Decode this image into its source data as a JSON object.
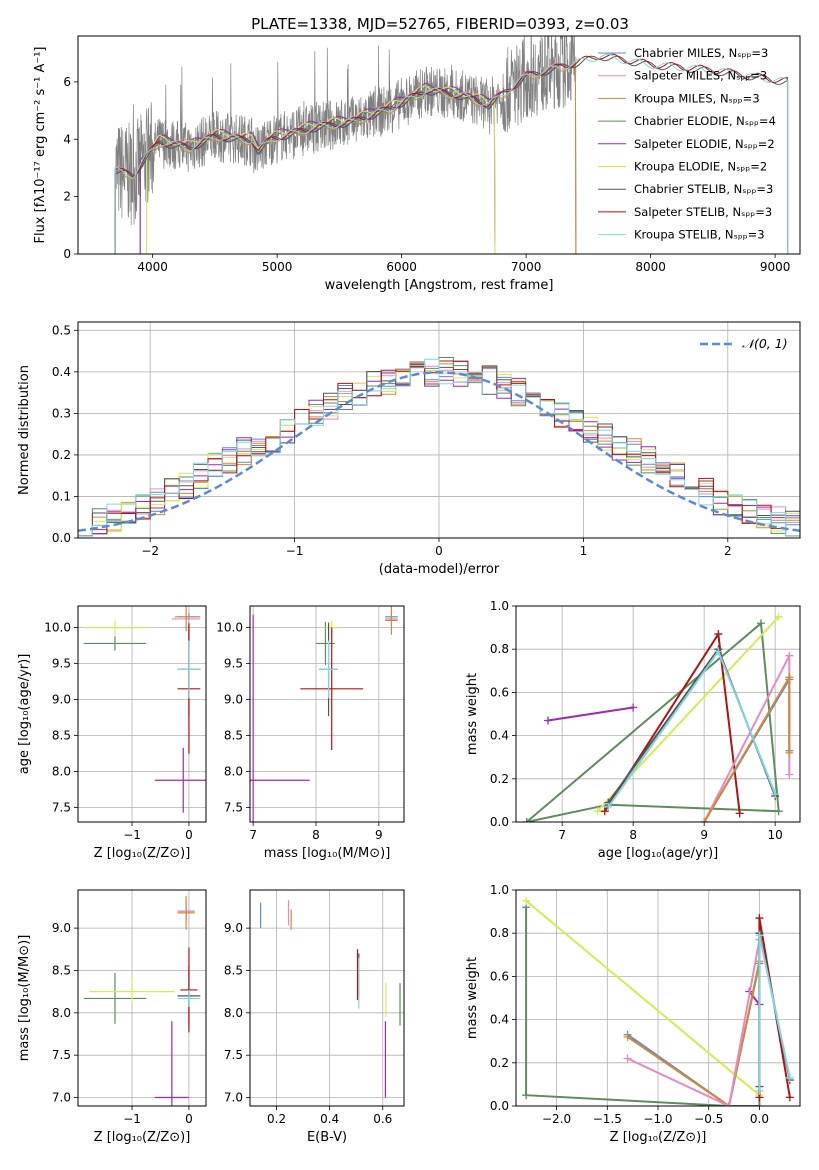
{
  "figure_title": "PLATE=1338, MJD=52765, FIBERID=0393, z=0.03",
  "colors": {
    "Chabrier MILES": "#5b8bd6",
    "Salpeter MILES": "#e78ac3",
    "Kroupa MILES": "#d4883a",
    "Chabrier ELODIE": "#5e8c5e",
    "Salpeter ELODIE": "#9c2ab5",
    "Kroupa ELODIE": "#d6ea54",
    "Chabrier STELIB": "#555555",
    "Salpeter STELIB": "#b01313",
    "Kroupa STELIB": "#7fd6e0",
    "data": "#808080",
    "grid": "#b0b0b0",
    "normal_curve": "#5b8bd6"
  },
  "chart_data": [
    {
      "id": "spectrum",
      "type": "line",
      "title": "PLATE=1338, MJD=52765, FIBERID=0393, z=0.03",
      "xlabel": "wavelength [Angstrom, rest frame]",
      "ylabel": "Flux [fλ10⁻¹⁷ erg cm⁻² s⁻¹ A⁻¹]",
      "xlim": [
        3400,
        9200
      ],
      "ylim": [
        0,
        7.6
      ],
      "xticks": [
        "4000",
        "5000",
        "6000",
        "7000",
        "8000",
        "9000"
      ],
      "yticks": [
        "0",
        "2",
        "4",
        "6"
      ],
      "grid": false,
      "legend_position": "top-right",
      "data_series": {
        "x_range": [
          3700,
          7400
        ],
        "name": "data"
      },
      "model_series": [
        {
          "label": "Chabrier MILES, Nₛₚₚ=3",
          "color_key": "Chabrier MILES",
          "x_range": [
            3700,
            7400
          ],
          "offset": 0.0
        },
        {
          "label": "Salpeter MILES, Nₛₚₚ=3",
          "color_key": "Salpeter MILES",
          "x_range": [
            3700,
            7400
          ],
          "offset": 0.05
        },
        {
          "label": "Kroupa MILES, Nₛₚₚ=3",
          "color_key": "Kroupa MILES",
          "x_range": [
            3700,
            7400
          ],
          "offset": -0.05
        },
        {
          "label": "Chabrier ELODIE, Nₛₚₚ=4",
          "color_key": "Chabrier ELODIE",
          "x_range": [
            3900,
            6750
          ],
          "offset": 0.08
        },
        {
          "label": "Salpeter ELODIE, Nₛₚₚ=2",
          "color_key": "Salpeter ELODIE",
          "x_range": [
            3900,
            6750
          ],
          "offset": 0.15
        },
        {
          "label": "Kroupa ELODIE, Nₛₚₚ=2",
          "color_key": "Kroupa ELODIE",
          "x_range": [
            3950,
            6750
          ],
          "offset": 0.12
        },
        {
          "label": "Chabrier STELIB, Nₛₚₚ=3",
          "color_key": "Chabrier STELIB",
          "x_range": [
            3700,
            9100
          ],
          "offset": -0.02
        },
        {
          "label": "Salpeter STELIB, Nₛₚₚ=3",
          "color_key": "Salpeter STELIB",
          "x_range": [
            3700,
            9100
          ],
          "offset": 0.02
        },
        {
          "label": "Kroupa STELIB, Nₛₚₚ=3",
          "color_key": "Kroupa STELIB",
          "x_range": [
            3700,
            9100
          ],
          "offset": 0.0
        }
      ],
      "continuum_points": [
        [
          3700,
          2.9
        ],
        [
          3850,
          2.75
        ],
        [
          3950,
          3.4
        ],
        [
          4050,
          3.9
        ],
        [
          4300,
          3.7
        ],
        [
          4500,
          4.1
        ],
        [
          4800,
          3.95
        ],
        [
          4850,
          3.6
        ],
        [
          4950,
          4.0
        ],
        [
          5300,
          4.4
        ],
        [
          5600,
          4.6
        ],
        [
          5900,
          5.05
        ],
        [
          6200,
          5.7
        ],
        [
          6500,
          5.5
        ],
        [
          6700,
          5.2
        ],
        [
          7000,
          6.2
        ],
        [
          7350,
          6.6
        ],
        [
          7600,
          6.9
        ],
        [
          8000,
          6.6
        ],
        [
          8500,
          6.4
        ],
        [
          9100,
          6.0
        ]
      ]
    },
    {
      "id": "residuals",
      "type": "bar",
      "xlabel": "(data-model)/error",
      "ylabel": "Normed distribution",
      "xlim": [
        -2.5,
        2.5
      ],
      "ylim": [
        0,
        0.52
      ],
      "xticks": [
        "−2",
        "−1",
        "0",
        "1",
        "2"
      ],
      "yticks": [
        "0.0",
        "0.1",
        "0.2",
        "0.3",
        "0.4",
        "0.5"
      ],
      "grid": true,
      "legend_position": "top-right",
      "legend": "𝒩(0, 1)",
      "bin_width": 0.1,
      "base_values": [
        0.03,
        0.04,
        0.05,
        0.06,
        0.07,
        0.09,
        0.11,
        0.13,
        0.15,
        0.17,
        0.19,
        0.21,
        0.22,
        0.24,
        0.26,
        0.28,
        0.3,
        0.32,
        0.34,
        0.35,
        0.37,
        0.38,
        0.39,
        0.4,
        0.4,
        0.4,
        0.4,
        0.39,
        0.38,
        0.37,
        0.35,
        0.34,
        0.32,
        0.3,
        0.28,
        0.26,
        0.24,
        0.22,
        0.21,
        0.19,
        0.17,
        0.15,
        0.13,
        0.11,
        0.09,
        0.07,
        0.06,
        0.05,
        0.04,
        0.03
      ]
    },
    {
      "id": "age_vs_Z",
      "type": "scatter",
      "xlabel": "Z [log₁₀(Z/Z⊙)]",
      "ylabel": "age  [log₁₀(age/yr)]",
      "xlim": [
        -1.95,
        0.3
      ],
      "ylim": [
        7.3,
        10.3
      ],
      "xticks": [
        "−1",
        "0"
      ],
      "yticks": [
        "7.5",
        "8.0",
        "8.5",
        "9.0",
        "9.5",
        "10.0"
      ],
      "grid": true,
      "points": [
        {
          "k": "Chabrier MILES",
          "x": 0.0,
          "y": 10.15,
          "ex": 0.2,
          "ey": 0.05
        },
        {
          "k": "Salpeter MILES",
          "x": -0.05,
          "y": 10.12,
          "ex": 0.25,
          "ey": 0.05
        },
        {
          "k": "Kroupa MILES",
          "x": -0.05,
          "y": 10.15,
          "ex": 0.2,
          "ey": 0.2
        },
        {
          "k": "Chabrier ELODIE",
          "x": -1.3,
          "y": 9.78,
          "ex": 0.55,
          "ey": 0.1
        },
        {
          "k": "Kroupa ELODIE",
          "x": -1.3,
          "y": 10.0,
          "ex": 0.55,
          "ey": 0.1
        },
        {
          "k": "Salpeter ELODIE",
          "x": -0.1,
          "y": 7.88,
          "ex": 0.5,
          "ey": 0.45
        },
        {
          "k": "Chabrier STELIB",
          "x": 0.0,
          "y": 9.42,
          "ex": 0.2,
          "ey": 0.65
        },
        {
          "k": "Salpeter STELIB",
          "x": 0.0,
          "y": 9.15,
          "ex": 0.2,
          "ey": 0.9
        },
        {
          "k": "Kroupa STELIB",
          "x": 0.0,
          "y": 9.42,
          "ex": 0.2,
          "ey": 0.4
        }
      ]
    },
    {
      "id": "age_vs_mass",
      "type": "scatter",
      "xlabel": "mass [log₁₀(M/M⊙)]",
      "ylabel": "",
      "xlim": [
        6.95,
        9.4
      ],
      "ylim": [
        7.3,
        10.3
      ],
      "xticks": [
        "7",
        "8",
        "9"
      ],
      "yticks": [
        "7.5",
        "8.0",
        "8.5",
        "9.0",
        "9.5",
        "10.0"
      ],
      "grid": true,
      "points": [
        {
          "k": "Chabrier MILES",
          "x": 9.2,
          "y": 10.15,
          "ex": 0.1,
          "ey": 0.05
        },
        {
          "k": "Salpeter MILES",
          "x": 9.2,
          "y": 10.12,
          "ex": 0.1,
          "ey": 0.05
        },
        {
          "k": "Kroupa MILES",
          "x": 9.2,
          "y": 10.1,
          "ex": 0.1,
          "ey": 0.2
        },
        {
          "k": "Chabrier ELODIE",
          "x": 8.15,
          "y": 9.78,
          "ex": 0.15,
          "ey": 0.3
        },
        {
          "k": "Kroupa ELODIE",
          "x": 8.25,
          "y": 10.0,
          "ex": 0.1,
          "ey": 0.1
        },
        {
          "k": "Salpeter ELODIE",
          "x": 7.0,
          "y": 7.88,
          "ex": 0.9,
          "ey": 2.3
        },
        {
          "k": "Chabrier STELIB",
          "x": 8.2,
          "y": 9.42,
          "ex": 0.15,
          "ey": 0.65
        },
        {
          "k": "Salpeter STELIB",
          "x": 8.25,
          "y": 9.15,
          "ex": 0.5,
          "ey": 0.85
        },
        {
          "k": "Kroupa STELIB",
          "x": 8.2,
          "y": 9.42,
          "ex": 0.15,
          "ey": 0.4
        }
      ]
    },
    {
      "id": "weight_vs_age",
      "type": "line",
      "xlabel": "age  [log₁₀(age/yr)]",
      "ylabel": "mass weight",
      "xlim": [
        6.35,
        10.35
      ],
      "ylim": [
        0,
        1
      ],
      "xticks": [
        "7",
        "8",
        "9",
        "10"
      ],
      "yticks": [
        "0.0",
        "0.2",
        "0.4",
        "0.6",
        "0.8",
        "1.0"
      ],
      "grid": true,
      "series": [
        {
          "k": "Salpeter ELODIE",
          "x": [
            6.8,
            8.0
          ],
          "y": [
            0.47,
            0.53
          ]
        },
        {
          "k": "Chabrier ELODIE",
          "x": [
            6.5,
            9.8,
            10.05,
            7.65,
            6.5
          ],
          "y": [
            0.0,
            0.92,
            0.05,
            0.08,
            0.0
          ]
        },
        {
          "k": "Kroupa ELODIE",
          "x": [
            7.5,
            10.05
          ],
          "y": [
            0.05,
            0.95
          ]
        },
        {
          "k": "Salpeter STELIB",
          "x": [
            7.6,
            9.2,
            9.5
          ],
          "y": [
            0.05,
            0.87,
            0.04
          ]
        },
        {
          "k": "Chabrier MILES",
          "x": [
            9.0,
            10.2,
            10.2
          ],
          "y": [
            0.0,
            0.66,
            0.33
          ]
        },
        {
          "k": "Salpeter MILES",
          "x": [
            9.0,
            10.2,
            10.2
          ],
          "y": [
            0.0,
            0.77,
            0.22
          ]
        },
        {
          "k": "Kroupa MILES",
          "x": [
            9.0,
            10.2,
            10.2
          ],
          "y": [
            0.0,
            0.67,
            0.32
          ]
        },
        {
          "k": "Chabrier STELIB",
          "x": [
            7.65,
            9.2,
            10.0
          ],
          "y": [
            0.09,
            0.8,
            0.12
          ]
        },
        {
          "k": "Kroupa STELIB",
          "x": [
            7.65,
            9.2,
            10.0
          ],
          "y": [
            0.07,
            0.79,
            0.13
          ]
        }
      ]
    },
    {
      "id": "mass_vs_Z",
      "type": "scatter",
      "xlabel": "Z [log₁₀(Z/Z⊙)]",
      "ylabel": "mass [log₁₀(M/M⊙)]",
      "xlim": [
        -1.95,
        0.3
      ],
      "ylim": [
        6.9,
        9.45
      ],
      "xticks": [
        "−1",
        "0"
      ],
      "yticks": [
        "7.0",
        "7.5",
        "8.0",
        "8.5",
        "9.0"
      ],
      "grid": true,
      "points": [
        {
          "k": "Chabrier MILES",
          "x": -0.05,
          "y": 9.2,
          "ex": 0.15,
          "ey": 0.05
        },
        {
          "k": "Salpeter MILES",
          "x": -0.05,
          "y": 9.2,
          "ex": 0.15,
          "ey": 0.12
        },
        {
          "k": "Kroupa MILES",
          "x": -0.05,
          "y": 9.18,
          "ex": 0.15,
          "ey": 0.2
        },
        {
          "k": "Chabrier ELODIE",
          "x": -1.3,
          "y": 8.17,
          "ex": 0.55,
          "ey": 0.3
        },
        {
          "k": "Kroupa ELODIE",
          "x": -1.0,
          "y": 8.25,
          "ex": 0.75,
          "ey": 0.15
        },
        {
          "k": "Salpeter ELODIE",
          "x": -0.3,
          "y": 7.0,
          "ex": 0.3,
          "ey": 0.9
        },
        {
          "k": "Chabrier STELIB",
          "x": 0.0,
          "y": 8.2,
          "ex": 0.2,
          "ey": 0.35
        },
        {
          "k": "Salpeter STELIB",
          "x": 0.0,
          "y": 8.27,
          "ex": 0.15,
          "ey": 0.5
        },
        {
          "k": "Kroupa STELIB",
          "x": 0.0,
          "y": 8.17,
          "ex": 0.2,
          "ey": 0.1
        }
      ]
    },
    {
      "id": "mass_vs_ebv",
      "type": "scatter",
      "xlabel": "E(B-V)",
      "ylabel": "",
      "xlim": [
        0.1,
        0.68
      ],
      "ylim": [
        6.9,
        9.45
      ],
      "xticks": [
        "0.2",
        "0.4",
        "0.6"
      ],
      "yticks": [
        "7.0",
        "7.5",
        "8.0",
        "8.5",
        "9.0"
      ],
      "grid": true,
      "points": [
        {
          "k": "Chabrier MILES",
          "x": 0.14,
          "y": 9.15,
          "ex": 0.0,
          "ey": 0.15
        },
        {
          "k": "Salpeter MILES",
          "x": 0.245,
          "y": 9.18,
          "ex": 0.0,
          "ey": 0.15
        },
        {
          "k": "Kroupa MILES",
          "x": 0.255,
          "y": 9.1,
          "ex": 0.0,
          "ey": 0.12
        },
        {
          "k": "Chabrier ELODIE",
          "x": 0.665,
          "y": 8.1,
          "ex": 0.0,
          "ey": 0.25
        },
        {
          "k": "Kroupa ELODIE",
          "x": 0.612,
          "y": 8.15,
          "ex": 0.0,
          "ey": 0.2
        },
        {
          "k": "Salpeter ELODIE",
          "x": 0.61,
          "y": 7.45,
          "ex": 0.0,
          "ey": 0.45
        },
        {
          "k": "Chabrier STELIB",
          "x": 0.51,
          "y": 8.45,
          "ex": 0.0,
          "ey": 0.25
        },
        {
          "k": "Salpeter STELIB",
          "x": 0.505,
          "y": 8.45,
          "ex": 0.0,
          "ey": 0.3
        },
        {
          "k": "Kroupa STELIB",
          "x": 0.51,
          "y": 8.35,
          "ex": 0.0,
          "ey": 0.3
        }
      ]
    },
    {
      "id": "weight_vs_Z",
      "type": "line",
      "xlabel": "Z [log₁₀(Z/Z⊙)]",
      "ylabel": "mass weight",
      "xlim": [
        -2.4,
        0.4
      ],
      "ylim": [
        0,
        1
      ],
      "xticks": [
        "−2.0",
        "−1.5",
        "−1.0",
        "−0.5",
        "0.0"
      ],
      "yticks": [
        "0.0",
        "0.2",
        "0.4",
        "0.6",
        "0.8",
        "1.0"
      ],
      "grid": true,
      "series": [
        {
          "k": "Chabrier ELODIE",
          "x": [
            -2.3,
            -2.3,
            -0.3,
            0.0,
            0.0
          ],
          "y": [
            0.92,
            0.05,
            0.0,
            0.0,
            0.8
          ]
        },
        {
          "k": "Kroupa ELODIE",
          "x": [
            -2.3,
            0.0
          ],
          "y": [
            0.95,
            0.05
          ]
        },
        {
          "k": "Salpeter ELODIE",
          "x": [
            -0.1,
            0.0
          ],
          "y": [
            0.53,
            0.47
          ]
        },
        {
          "k": "Chabrier MILES",
          "x": [
            -1.3,
            -0.3,
            0.0
          ],
          "y": [
            0.33,
            0.0,
            0.66
          ]
        },
        {
          "k": "Kroupa MILES",
          "x": [
            -1.3,
            -0.3,
            0.0
          ],
          "y": [
            0.32,
            0.0,
            0.67
          ]
        },
        {
          "k": "Salpeter MILES",
          "x": [
            -1.3,
            -0.3,
            0.0
          ],
          "y": [
            0.22,
            0.0,
            0.77
          ]
        },
        {
          "k": "Salpeter STELIB",
          "x": [
            0.0,
            0.0,
            0.3
          ],
          "y": [
            0.04,
            0.87,
            0.04
          ]
        },
        {
          "k": "Chabrier STELIB",
          "x": [
            0.0,
            0.0,
            0.3
          ],
          "y": [
            0.09,
            0.8,
            0.12
          ]
        },
        {
          "k": "Kroupa STELIB",
          "x": [
            0.0,
            0.0,
            0.3
          ],
          "y": [
            0.07,
            0.79,
            0.13
          ]
        }
      ]
    }
  ]
}
